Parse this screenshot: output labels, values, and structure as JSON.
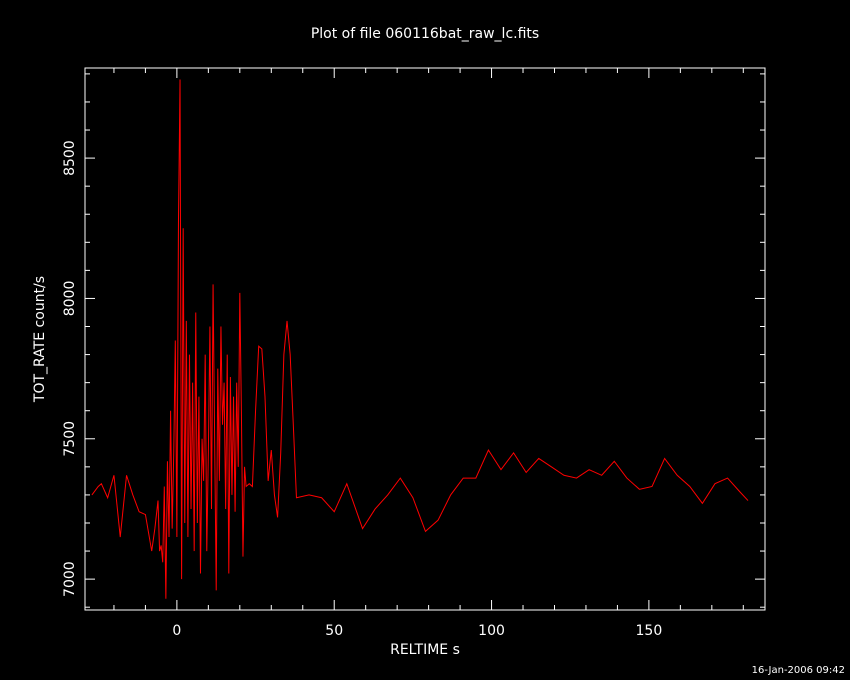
{
  "chart_data": {
    "type": "line",
    "title": "Plot of file 060116bat_raw_lc.fits",
    "xlabel": "RELTIME  s",
    "ylabel": "TOT_RATE  count/s",
    "timestamp": "16-Jan-2006 09:42",
    "color": "#ff0000",
    "x": [
      -27,
      -25,
      -24,
      -22,
      -20,
      -18,
      -16,
      -14,
      -12,
      -10,
      -8,
      -7,
      -6,
      -5.5,
      -5,
      -4.5,
      -4,
      -3.5,
      -3,
      -2.5,
      -2,
      -1.5,
      -1,
      -0.5,
      0,
      0.5,
      1,
      1.5,
      2,
      2.5,
      3,
      3.5,
      4,
      4.5,
      5,
      5.5,
      6,
      6.5,
      7,
      7.5,
      8,
      8.5,
      9,
      9.5,
      10,
      10.5,
      11,
      11.5,
      12,
      12.5,
      13,
      13.5,
      14,
      14.5,
      15,
      15.5,
      16,
      16.5,
      17,
      17.5,
      18,
      18.5,
      19,
      19.5,
      20,
      20.5,
      21,
      21.5,
      22,
      23,
      24,
      25,
      26,
      27,
      28,
      29,
      30,
      31,
      32,
      33,
      34,
      35,
      36,
      37,
      38,
      42,
      46,
      50,
      54,
      59,
      63,
      67,
      71,
      75,
      79,
      83,
      87,
      91,
      95,
      99,
      103,
      107,
      111,
      115,
      119,
      123,
      127,
      131,
      135,
      139,
      143,
      147,
      151,
      155,
      159,
      163,
      167,
      171,
      175,
      179,
      181.5
    ],
    "values": [
      7300,
      7330,
      7340,
      7290,
      7370,
      7150,
      7370,
      7300,
      7240,
      7230,
      7100,
      7180,
      7280,
      7100,
      7120,
      7060,
      7330,
      6930,
      7420,
      7150,
      7600,
      7180,
      7450,
      7850,
      7150,
      8270,
      8780,
      7000,
      8250,
      7200,
      7920,
      7150,
      7800,
      7250,
      7700,
      7100,
      7950,
      7200,
      7650,
      7020,
      7500,
      7350,
      7800,
      7100,
      7450,
      7900,
      7250,
      8050,
      7500,
      6960,
      7750,
      7350,
      7900,
      7550,
      7700,
      7250,
      7800,
      7020,
      7720,
      7300,
      7650,
      7240,
      7700,
      7400,
      8020,
      7600,
      7080,
      7400,
      7330,
      7340,
      7330,
      7600,
      7830,
      7820,
      7650,
      7350,
      7460,
      7300,
      7220,
      7450,
      7800,
      7920,
      7800,
      7550,
      7290,
      7300,
      7290,
      7240,
      7340,
      7180,
      7250,
      7300,
      7360,
      7290,
      7170,
      7210,
      7300,
      7360,
      7360,
      7460,
      7390,
      7450,
      7380,
      7430,
      7400,
      7370,
      7360,
      7390,
      7370,
      7420,
      7360,
      7320,
      7330,
      7430,
      7370,
      7330,
      7270,
      7340,
      7360,
      7310,
      7280
    ],
    "xlim": [
      -29.2,
      186.9
    ],
    "ylim": [
      6890,
      8821
    ],
    "xticks": [
      0,
      50,
      100,
      150
    ],
    "xminorticks": [
      -20,
      -10,
      10,
      20,
      30,
      40,
      60,
      70,
      80,
      90,
      110,
      120,
      130,
      140,
      160,
      170,
      180
    ],
    "yticks": [
      7000,
      7500,
      8000,
      8500
    ],
    "yminorticks": [
      6900,
      7100,
      7200,
      7300,
      7400,
      7600,
      7700,
      7800,
      7900,
      8100,
      8200,
      8300,
      8400,
      8600,
      8700,
      8800
    ]
  }
}
